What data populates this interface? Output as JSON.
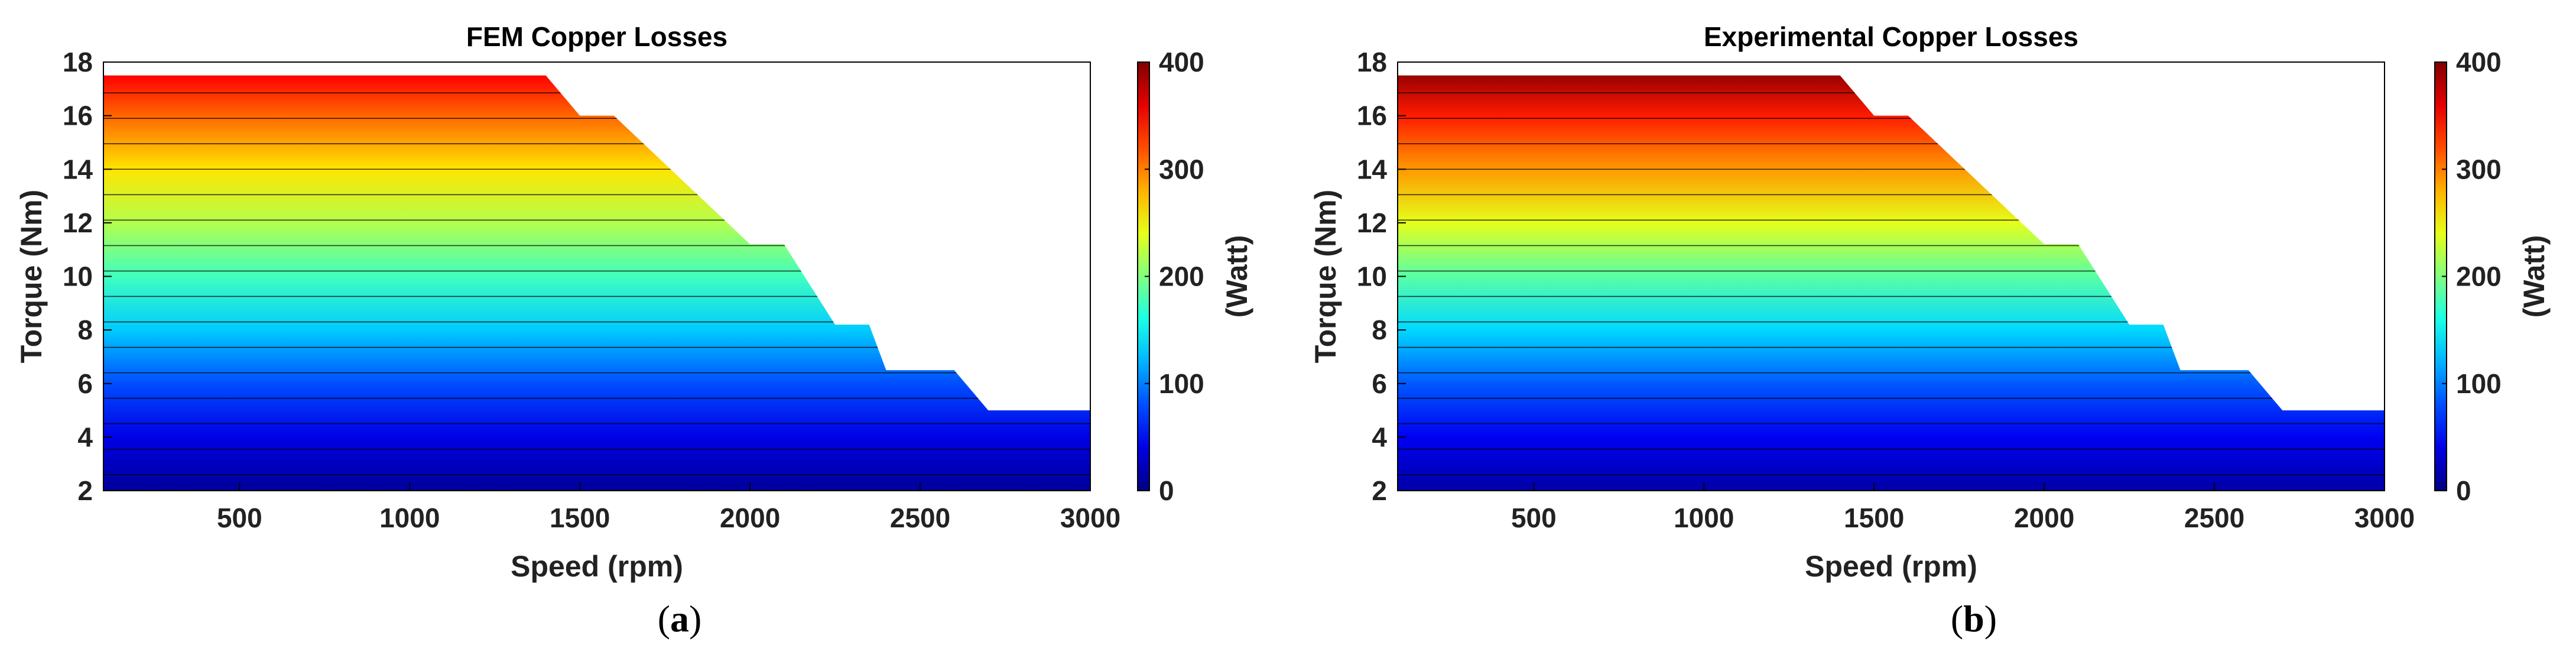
{
  "chart_data": [
    {
      "id": "a",
      "type": "heatmap",
      "subtype": "filled-contour",
      "title": "FEM Copper Losses",
      "xlabel": "Speed (rpm)",
      "ylabel": "Torque (Nm)",
      "xlim": [
        100,
        3000
      ],
      "ylim": [
        2,
        18
      ],
      "xticks": [
        500,
        1000,
        1500,
        2000,
        2500,
        3000
      ],
      "yticks": [
        2,
        4,
        6,
        8,
        10,
        12,
        14,
        16,
        18
      ],
      "colorbar": {
        "label": "(Watt)",
        "min": 0,
        "max": 400,
        "ticks": [
          0,
          100,
          200,
          300,
          400
        ],
        "colormap": "jet"
      },
      "envelope": [
        [
          100,
          17.5
        ],
        [
          1400,
          17.5
        ],
        [
          1500,
          16
        ],
        [
          1600,
          16
        ],
        [
          2000,
          11.2
        ],
        [
          2100,
          11.2
        ],
        [
          2250,
          8.2
        ],
        [
          2350,
          8.2
        ],
        [
          2400,
          6.5
        ],
        [
          2600,
          6.5
        ],
        [
          2700,
          5
        ],
        [
          3000,
          5
        ]
      ],
      "copper_losses_by_torque": {
        "torque": [
          2,
          4,
          6,
          8,
          10,
          12,
          14,
          16,
          17.5
        ],
        "watt": [
          10,
          40,
          80,
          130,
          175,
          220,
          260,
          310,
          350
        ]
      },
      "caption_label": "a"
    },
    {
      "id": "b",
      "type": "heatmap",
      "subtype": "filled-contour",
      "title": "Experimental Copper Losses",
      "xlabel": "Speed (rpm)",
      "ylabel": "Torque (Nm)",
      "xlim": [
        100,
        3000
      ],
      "ylim": [
        2,
        18
      ],
      "xticks": [
        500,
        1000,
        1500,
        2000,
        2500,
        3000
      ],
      "yticks": [
        2,
        4,
        6,
        8,
        10,
        12,
        14,
        16,
        18
      ],
      "colorbar": {
        "label": "(Watt)",
        "min": 0,
        "max": 400,
        "ticks": [
          0,
          100,
          200,
          300,
          400
        ],
        "colormap": "jet"
      },
      "envelope": [
        [
          100,
          17.5
        ],
        [
          1400,
          17.5
        ],
        [
          1500,
          16
        ],
        [
          1600,
          16
        ],
        [
          2000,
          11.2
        ],
        [
          2100,
          11.2
        ],
        [
          2250,
          8.2
        ],
        [
          2350,
          8.2
        ],
        [
          2400,
          6.5
        ],
        [
          2600,
          6.5
        ],
        [
          2700,
          5
        ],
        [
          3000,
          5
        ]
      ],
      "copper_losses_by_torque": {
        "torque": [
          2,
          4,
          6,
          8,
          10,
          12,
          14,
          16,
          17.5
        ],
        "watt": [
          15,
          45,
          85,
          135,
          185,
          240,
          290,
          340,
          390
        ]
      },
      "caption_label": "b"
    }
  ]
}
